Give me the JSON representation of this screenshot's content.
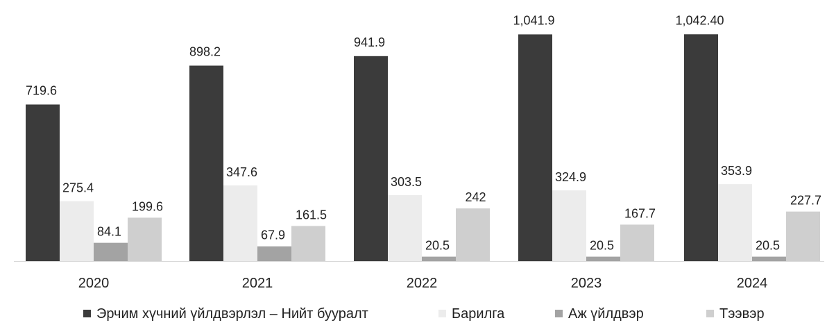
{
  "chart_data": {
    "type": "bar",
    "title": "",
    "xlabel": "",
    "ylabel": "",
    "categories": [
      "2020",
      "2021",
      "2022",
      "2023",
      "2024"
    ],
    "series": [
      {
        "name": "Эрчим хүчний үйлдвэрлэл – Нийт бууралт",
        "color": "#3b3b3b",
        "values": [
          719.6,
          898.2,
          941.9,
          1041.9,
          1042.4
        ],
        "labels": [
          "719.6",
          "898.2",
          "941.9",
          "1,041.9",
          "1,042.40"
        ]
      },
      {
        "name": "Барилга",
        "color": "#ececec",
        "values": [
          275.4,
          347.6,
          303.5,
          324.9,
          353.9
        ],
        "labels": [
          "275.4",
          "347.6",
          "303.5",
          "324.9",
          "353.9"
        ]
      },
      {
        "name": "Аж үйлдвэр",
        "color": "#a3a3a3",
        "values": [
          84.1,
          67.9,
          20.5,
          20.5,
          20.5
        ],
        "labels": [
          "84.1",
          "67.9",
          "20.5",
          "20.5",
          "20.5"
        ]
      },
      {
        "name": "Тээвэр",
        "color": "#cfcfcf",
        "values": [
          199.6,
          161.5,
          242,
          167.7,
          227.7
        ],
        "labels": [
          "199.6",
          "161.5",
          "242",
          "167.7",
          "227.7"
        ]
      }
    ],
    "ylim": [
      0,
      1100
    ],
    "grid": false,
    "legend": "bottom"
  }
}
